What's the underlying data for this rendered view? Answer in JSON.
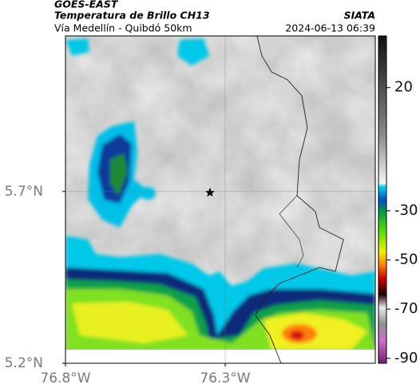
{
  "header": {
    "source": "GOES-EAST",
    "title": "Temperatura de Brillo CH13",
    "org": "SIATA",
    "subtitle": "Vía Medellín - Quibdó 50km",
    "datetime": "2024-06-13 06:39"
  },
  "map": {
    "xlim": [
      -76.8,
      -75.83
    ],
    "ylim": [
      5.2,
      6.153
    ],
    "xticks": [
      {
        "value": -76.8,
        "label": "76.8°W"
      },
      {
        "value": -76.3,
        "label": "76.3°W"
      }
    ],
    "yticks": [
      {
        "value": 5.7,
        "label": "5.7°N"
      },
      {
        "value": 5.2,
        "label": "5.2°N"
      }
    ],
    "grid": true
  },
  "colorbar": {
    "lim": [
      -92,
      41
    ],
    "ticks": [
      20,
      -30,
      -50,
      -70,
      -90
    ]
  }
}
